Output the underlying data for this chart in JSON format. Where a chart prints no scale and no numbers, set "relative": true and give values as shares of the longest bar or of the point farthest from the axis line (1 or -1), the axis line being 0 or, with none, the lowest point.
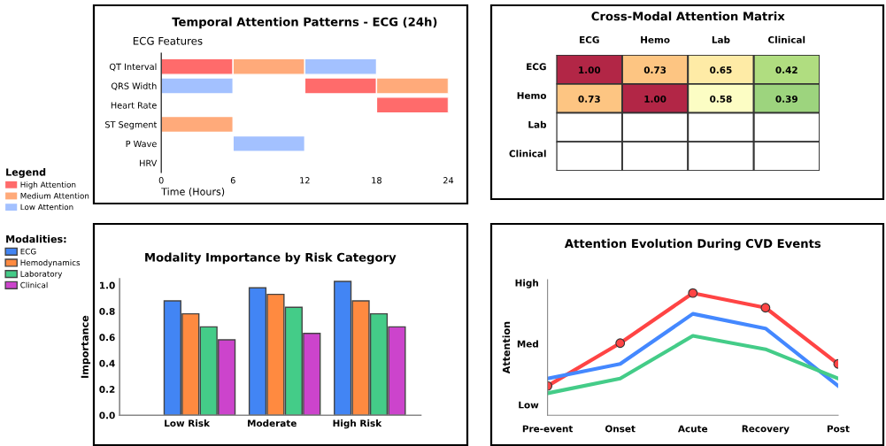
{
  "chart_data": [
    {
      "type": "bar",
      "orientation": "horizontal",
      "title": "Temporal Attention Patterns - ECG (24h)",
      "ylabel": "ECG Features",
      "xlabel": "Time (Hours)",
      "legend_title": "Legend",
      "legend": "left",
      "categories": [
        "QT Interval",
        "QRS Width",
        "Heart Rate",
        "ST Segment",
        "P Wave",
        "HRV"
      ],
      "xlim": [
        0,
        24
      ],
      "xticks": [
        0,
        6,
        12,
        18,
        24
      ],
      "grid": false,
      "series": [
        {
          "name": "High Attention",
          "color": "#ff6b6b",
          "base": [
            0,
            12,
            18,
            null,
            null,
            null
          ],
          "values": [
            6,
            6,
            6,
            null,
            null,
            null
          ]
        },
        {
          "name": "Medium Attention",
          "color": "#ffaa7a",
          "base": [
            6,
            18,
            null,
            0,
            null,
            null
          ],
          "values": [
            6,
            6,
            null,
            6,
            null,
            null
          ]
        },
        {
          "name": "Low Attention",
          "color": "#a3c1ff",
          "base": [
            12,
            0,
            null,
            null,
            6,
            null
          ],
          "values": [
            6,
            6,
            null,
            null,
            6,
            null
          ]
        }
      ]
    },
    {
      "type": "heatmap",
      "title": "Cross-Modal Attention Matrix",
      "categories": [
        "ECG",
        "Hemo",
        "Lab",
        "Clinical"
      ],
      "y_categories": [
        "ECG",
        "Hemo",
        "Lab",
        "Clinical"
      ],
      "cells": [
        [
          1.0,
          0.73,
          0.65,
          0.42
        ],
        [
          0.73,
          1.0,
          0.58,
          0.39
        ],
        [
          null,
          null,
          null,
          null
        ],
        [
          null,
          null,
          null,
          null
        ]
      ],
      "cell_labels": [
        [
          "1.00",
          "0.73",
          "0.65",
          "0.42"
        ],
        [
          "0.73",
          "1.00",
          "0.58",
          "0.39"
        ],
        [
          null,
          null,
          null,
          null
        ],
        [
          null,
          null,
          null,
          null
        ]
      ]
    },
    {
      "type": "bar",
      "title": "Modality Importance by Risk Category",
      "ylabel": "Importance",
      "legend_title": "Modalities:",
      "legend": "left",
      "categories": [
        "Low Risk",
        "Moderate",
        "High Risk"
      ],
      "ylim": [
        0,
        1.05
      ],
      "yticks": [
        {
          "value": 0,
          "label": "0.0"
        },
        0.2,
        0.4,
        0.6,
        0.8,
        {
          "value": 1,
          "label": "1.0"
        }
      ],
      "grid": false,
      "series": [
        {
          "name": "ECG",
          "color": "#4285f4",
          "values": [
            0.88,
            0.98,
            1.03
          ]
        },
        {
          "name": "Hemodynamics",
          "color": "#ff8a40",
          "values": [
            0.78,
            0.93,
            0.88
          ]
        },
        {
          "name": "Laboratory",
          "color": "#44cc88",
          "values": [
            0.68,
            0.83,
            0.78
          ]
        },
        {
          "name": "Clinical",
          "color": "#cc44cc",
          "values": [
            0.58,
            0.63,
            0.68
          ]
        }
      ]
    },
    {
      "type": "line",
      "title": "Attention Evolution During CVD Events",
      "ylabel": "Attention",
      "categories": [
        "Pre-event",
        "Onset",
        "Acute",
        "Recovery",
        "Post"
      ],
      "relative": true,
      "annotations": [
        "Low",
        "Med",
        "High"
      ],
      "grid": false,
      "line_style": "solid",
      "series": [
        {
          "color": "#ff4444",
          "marker": "circle",
          "values": [
            0.24,
            0.59,
            1.0,
            0.88,
            0.42
          ]
        },
        {
          "color": "#4488ff",
          "marker": "none",
          "values": [
            0.3,
            0.42,
            0.83,
            0.71,
            0.24
          ]
        },
        {
          "color": "#44cc88",
          "marker": "none",
          "values": [
            0.18,
            0.3,
            0.65,
            0.54,
            0.3
          ]
        }
      ]
    }
  ]
}
